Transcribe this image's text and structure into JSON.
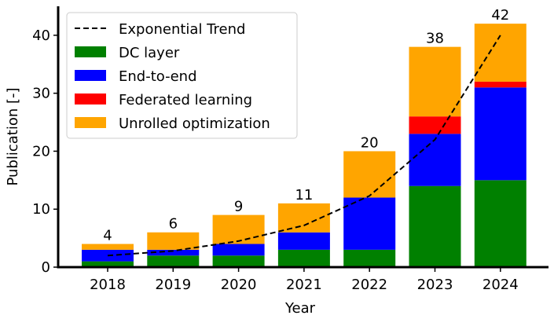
{
  "chart_data": {
    "type": "bar",
    "stacked": true,
    "xlabel": "Year",
    "ylabel": "Publication [-]",
    "ylim": [
      0,
      45
    ],
    "yticks": [
      0,
      10,
      20,
      30,
      40
    ],
    "categories": [
      "2018",
      "2019",
      "2020",
      "2021",
      "2022",
      "2023",
      "2024"
    ],
    "totals": [
      4,
      6,
      9,
      11,
      20,
      38,
      42
    ],
    "series": [
      {
        "name": "DC layer",
        "color": "#008000",
        "values": [
          1,
          2,
          2,
          3,
          3,
          14,
          15
        ]
      },
      {
        "name": "End-to-end",
        "color": "#0000ff",
        "values": [
          2,
          1,
          2,
          3,
          9,
          9,
          16
        ]
      },
      {
        "name": "Federated learning",
        "color": "#ff0000",
        "values": [
          0,
          0,
          0,
          0,
          0,
          3,
          1
        ]
      },
      {
        "name": "Unrolled optimization",
        "color": "#ffa500",
        "values": [
          1,
          3,
          5,
          5,
          8,
          12,
          10
        ]
      }
    ],
    "trend": {
      "name": "Exponential Trend",
      "color": "#000000",
      "style": "dashed",
      "values": [
        2.0,
        2.8,
        4.5,
        7.2,
        12.3,
        22.0,
        40.0
      ]
    },
    "grid": false,
    "legend_position": "top-left"
  }
}
